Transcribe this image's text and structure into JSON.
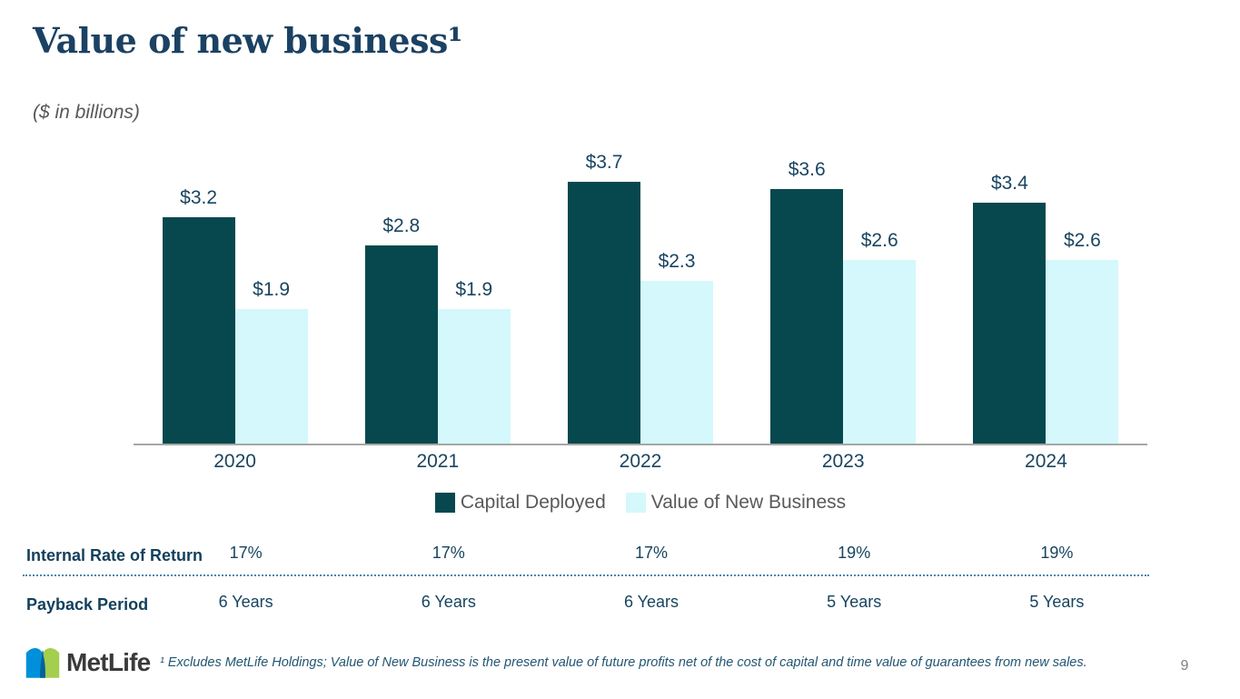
{
  "slide": {
    "title": "Value of new business¹",
    "subtitle": "($ in billions)",
    "logo_text": "MetLife",
    "footnote": "¹ Excludes MetLife Holdings; Value of New Business is the present value of future profits net of the cost of capital and time value of guarantees from new sales.",
    "page_number": "9"
  },
  "colors": {
    "capital_deployed": "#06484D",
    "value_of_new_business": "#D4F8FB",
    "label_navy": "#1A4560",
    "table_label_navy": "#123F5C",
    "text_gray": "#595959",
    "axis_gray": "#A6A6A6",
    "dotted_rule_blue": "#4E86AE",
    "logo_blue": "#0090DA",
    "logo_green": "#A4CE4E",
    "logo_dark_blue": "#0061A0"
  },
  "chart_data": {
    "type": "bar",
    "title": "Value of new business",
    "unit_note": "($ in billions)",
    "categories": [
      "2020",
      "2021",
      "2022",
      "2023",
      "2024"
    ],
    "series": [
      {
        "name": "Capital Deployed",
        "color": "#06484D",
        "values": [
          3.2,
          2.8,
          3.7,
          3.6,
          3.4
        ],
        "labels": [
          "$3.2",
          "$2.8",
          "$3.7",
          "$3.6",
          "$3.4"
        ]
      },
      {
        "name": "Value of New Business",
        "color": "#D4F8FB",
        "values": [
          1.9,
          1.9,
          2.3,
          2.6,
          2.6
        ],
        "labels": [
          "$1.9",
          "$1.9",
          "$2.3",
          "$2.6",
          "$2.6"
        ]
      }
    ],
    "ylim": [
      0,
      4.2
    ],
    "grid": false,
    "legend_position": "bottom"
  },
  "legend": {
    "items": [
      {
        "label": "Capital Deployed",
        "color": "#06484D"
      },
      {
        "label": "Value of New Business",
        "color": "#D4F8FB"
      }
    ]
  },
  "metrics_table": {
    "rows": [
      {
        "label": "Internal Rate of Return",
        "values": [
          "17%",
          "17%",
          "17%",
          "19%",
          "19%"
        ]
      },
      {
        "label": "Payback Period",
        "values": [
          "6 Years",
          "6 Years",
          "6 Years",
          "5 Years",
          "5 Years"
        ]
      }
    ]
  }
}
